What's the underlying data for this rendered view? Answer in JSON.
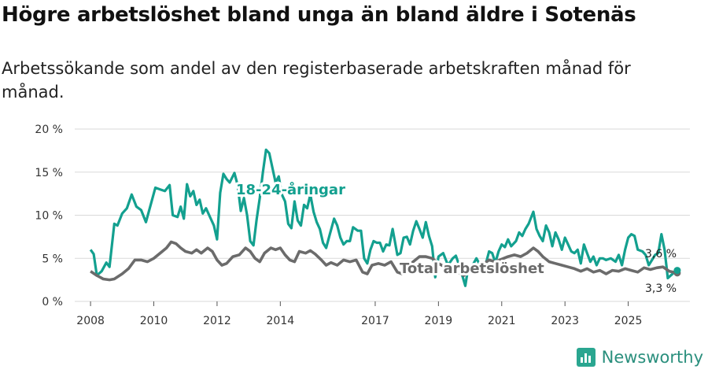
{
  "title": "Högre arbetslöshet bland unga än bland äldre i Sotenäs",
  "subtitle": "Arbetssökande som andel av den registerbaserade arbetskraften månad för månad.",
  "brand": {
    "name": "Newsworthy",
    "icon": "bar-chart-icon"
  },
  "colors": {
    "youth": "#13a08f",
    "total": "#6b6b6b",
    "grid": "#d9d9d9"
  },
  "chart_data": {
    "type": "line",
    "title": "Högre arbetslöshet bland unga än bland äldre i Sotenäs",
    "ylim": [
      0,
      20
    ],
    "xlim": [
      2007.5,
      2026.3
    ],
    "y_ticks": [
      0,
      5,
      10,
      15,
      20
    ],
    "y_tick_labels": [
      "0 %",
      "5 %",
      "10 %",
      "15 %",
      "20 %"
    ],
    "x_ticks": [
      2008,
      2010,
      2012,
      2014,
      2017,
      2019,
      2021,
      2023,
      2025
    ],
    "x_tick_labels": [
      "2008",
      "2010",
      "2012",
      "2014",
      "2017",
      "2019",
      "2021",
      "2023",
      "2025"
    ],
    "grid": true,
    "series": [
      {
        "name": "18-24-åringar",
        "label": "18-24-åringar",
        "color": "#13a08f",
        "end_label": "3,6 %",
        "end_value": 3.6,
        "points": [
          [
            2008.0,
            6.0
          ],
          [
            2008.1,
            5.5
          ],
          [
            2008.2,
            3.0
          ],
          [
            2008.35,
            3.5
          ],
          [
            2008.5,
            4.5
          ],
          [
            2008.6,
            4.0
          ],
          [
            2008.75,
            9.0
          ],
          [
            2008.85,
            8.8
          ],
          [
            2009.0,
            10.2
          ],
          [
            2009.15,
            10.8
          ],
          [
            2009.3,
            12.4
          ],
          [
            2009.45,
            11.0
          ],
          [
            2009.6,
            10.6
          ],
          [
            2009.75,
            9.2
          ],
          [
            2009.9,
            11.2
          ],
          [
            2010.05,
            13.2
          ],
          [
            2010.2,
            13.0
          ],
          [
            2010.35,
            12.8
          ],
          [
            2010.5,
            13.5
          ],
          [
            2010.6,
            10.0
          ],
          [
            2010.75,
            9.8
          ],
          [
            2010.85,
            11.0
          ],
          [
            2010.95,
            9.6
          ],
          [
            2011.05,
            13.6
          ],
          [
            2011.15,
            12.2
          ],
          [
            2011.25,
            12.8
          ],
          [
            2011.35,
            11.2
          ],
          [
            2011.45,
            11.8
          ],
          [
            2011.55,
            10.2
          ],
          [
            2011.65,
            10.8
          ],
          [
            2011.8,
            9.6
          ],
          [
            2011.9,
            8.8
          ],
          [
            2012.0,
            7.2
          ],
          [
            2012.1,
            12.6
          ],
          [
            2012.2,
            14.8
          ],
          [
            2012.3,
            14.2
          ],
          [
            2012.4,
            13.8
          ],
          [
            2012.55,
            14.9
          ],
          [
            2012.65,
            13.5
          ],
          [
            2012.75,
            10.5
          ],
          [
            2012.85,
            12.0
          ],
          [
            2012.95,
            10.0
          ],
          [
            2013.05,
            7.0
          ],
          [
            2013.15,
            6.5
          ],
          [
            2013.25,
            9.5
          ],
          [
            2013.35,
            12.0
          ],
          [
            2013.45,
            15.0
          ],
          [
            2013.55,
            17.6
          ],
          [
            2013.65,
            17.2
          ],
          [
            2013.75,
            15.5
          ],
          [
            2013.85,
            13.8
          ],
          [
            2013.95,
            14.5
          ],
          [
            2014.05,
            12.4
          ],
          [
            2014.15,
            11.6
          ],
          [
            2014.25,
            9.0
          ],
          [
            2014.35,
            8.5
          ],
          [
            2014.45,
            11.6
          ],
          [
            2014.55,
            9.4
          ],
          [
            2014.65,
            8.8
          ],
          [
            2014.75,
            11.2
          ],
          [
            2014.85,
            10.8
          ],
          [
            2014.95,
            12.4
          ],
          [
            2015.05,
            10.4
          ],
          [
            2015.15,
            9.2
          ],
          [
            2015.25,
            8.4
          ],
          [
            2015.35,
            6.8
          ],
          [
            2015.45,
            6.2
          ],
          [
            2015.55,
            7.6
          ],
          [
            2015.7,
            9.6
          ],
          [
            2015.8,
            8.8
          ],
          [
            2015.9,
            7.4
          ],
          [
            2016.0,
            6.6
          ],
          [
            2016.1,
            7.0
          ],
          [
            2016.2,
            7.0
          ],
          [
            2016.3,
            8.6
          ],
          [
            2016.45,
            8.2
          ],
          [
            2016.55,
            8.2
          ],
          [
            2016.65,
            5.0
          ],
          [
            2016.75,
            4.4
          ],
          [
            2016.85,
            6.0
          ],
          [
            2016.95,
            7.0
          ],
          [
            2017.05,
            6.8
          ],
          [
            2017.15,
            6.8
          ],
          [
            2017.25,
            5.8
          ],
          [
            2017.35,
            6.6
          ],
          [
            2017.45,
            6.5
          ],
          [
            2017.55,
            8.4
          ],
          [
            2017.7,
            5.4
          ],
          [
            2017.8,
            5.6
          ],
          [
            2017.9,
            7.4
          ],
          [
            2018.0,
            7.5
          ],
          [
            2018.1,
            6.6
          ],
          [
            2018.2,
            8.2
          ],
          [
            2018.3,
            9.3
          ],
          [
            2018.4,
            8.4
          ],
          [
            2018.5,
            7.4
          ],
          [
            2018.6,
            9.2
          ],
          [
            2018.7,
            7.6
          ],
          [
            2018.8,
            6.4
          ],
          [
            2018.9,
            2.8
          ],
          [
            2019.0,
            5.2
          ],
          [
            2019.15,
            5.6
          ],
          [
            2019.3,
            4.2
          ],
          [
            2019.45,
            5.0
          ],
          [
            2019.55,
            5.3
          ],
          [
            2019.7,
            3.7
          ],
          [
            2019.85,
            1.8
          ],
          [
            2019.95,
            4.2
          ],
          [
            2020.05,
            4.0
          ],
          [
            2020.2,
            5.0
          ],
          [
            2020.35,
            4.0
          ],
          [
            2020.5,
            4.4
          ],
          [
            2020.6,
            5.8
          ],
          [
            2020.7,
            5.6
          ],
          [
            2020.8,
            4.5
          ],
          [
            2020.9,
            5.8
          ],
          [
            2021.0,
            6.6
          ],
          [
            2021.1,
            6.3
          ],
          [
            2021.2,
            7.2
          ],
          [
            2021.3,
            6.4
          ],
          [
            2021.45,
            7.0
          ],
          [
            2021.55,
            8.0
          ],
          [
            2021.65,
            7.6
          ],
          [
            2021.75,
            8.4
          ],
          [
            2021.85,
            9.0
          ],
          [
            2022.0,
            10.4
          ],
          [
            2022.1,
            8.4
          ],
          [
            2022.2,
            7.6
          ],
          [
            2022.3,
            7.0
          ],
          [
            2022.4,
            8.8
          ],
          [
            2022.5,
            8.0
          ],
          [
            2022.6,
            6.4
          ],
          [
            2022.7,
            8.0
          ],
          [
            2022.8,
            7.2
          ],
          [
            2022.9,
            6.0
          ],
          [
            2023.0,
            7.4
          ],
          [
            2023.1,
            6.6
          ],
          [
            2023.2,
            5.8
          ],
          [
            2023.3,
            5.6
          ],
          [
            2023.4,
            6.0
          ],
          [
            2023.5,
            4.4
          ],
          [
            2023.6,
            6.6
          ],
          [
            2023.7,
            5.6
          ],
          [
            2023.8,
            4.6
          ],
          [
            2023.9,
            5.2
          ],
          [
            2024.0,
            4.2
          ],
          [
            2024.1,
            5.0
          ],
          [
            2024.2,
            5.0
          ],
          [
            2024.3,
            4.8
          ],
          [
            2024.45,
            5.0
          ],
          [
            2024.6,
            4.6
          ],
          [
            2024.7,
            5.4
          ],
          [
            2024.8,
            4.2
          ],
          [
            2024.9,
            6.0
          ],
          [
            2025.0,
            7.4
          ],
          [
            2025.1,
            7.8
          ],
          [
            2025.2,
            7.6
          ],
          [
            2025.3,
            6.0
          ],
          [
            2025.45,
            5.8
          ],
          [
            2025.55,
            5.4
          ],
          [
            2025.65,
            4.2
          ],
          [
            2025.75,
            4.8
          ],
          [
            2025.85,
            5.4
          ],
          [
            2025.95,
            5.6
          ],
          [
            2026.05,
            7.8
          ],
          [
            2026.15,
            6.0
          ],
          [
            2026.25,
            2.7
          ],
          [
            2026.4,
            3.2
          ],
          [
            2026.55,
            3.6
          ]
        ]
      },
      {
        "name": "Total arbetslöshet",
        "label": "Total arbetslöshet",
        "color": "#6b6b6b",
        "end_label": "3,3 %",
        "end_value": 3.3,
        "points": [
          [
            2008.0,
            3.5
          ],
          [
            2008.2,
            3.0
          ],
          [
            2008.4,
            2.6
          ],
          [
            2008.6,
            2.5
          ],
          [
            2008.75,
            2.6
          ],
          [
            2009.0,
            3.2
          ],
          [
            2009.2,
            3.8
          ],
          [
            2009.4,
            4.8
          ],
          [
            2009.6,
            4.8
          ],
          [
            2009.8,
            4.6
          ],
          [
            2010.0,
            5.0
          ],
          [
            2010.2,
            5.6
          ],
          [
            2010.4,
            6.2
          ],
          [
            2010.55,
            6.9
          ],
          [
            2010.7,
            6.7
          ],
          [
            2010.85,
            6.2
          ],
          [
            2011.0,
            5.8
          ],
          [
            2011.2,
            5.6
          ],
          [
            2011.35,
            6.0
          ],
          [
            2011.5,
            5.6
          ],
          [
            2011.7,
            6.2
          ],
          [
            2011.85,
            5.8
          ],
          [
            2012.0,
            4.8
          ],
          [
            2012.15,
            4.2
          ],
          [
            2012.3,
            4.4
          ],
          [
            2012.5,
            5.2
          ],
          [
            2012.7,
            5.4
          ],
          [
            2012.9,
            6.2
          ],
          [
            2013.05,
            5.8
          ],
          [
            2013.2,
            5.0
          ],
          [
            2013.35,
            4.6
          ],
          [
            2013.5,
            5.6
          ],
          [
            2013.7,
            6.2
          ],
          [
            2013.85,
            6.0
          ],
          [
            2014.0,
            6.2
          ],
          [
            2014.15,
            5.4
          ],
          [
            2014.3,
            4.8
          ],
          [
            2014.45,
            4.6
          ],
          [
            2014.6,
            5.8
          ],
          [
            2014.8,
            5.6
          ],
          [
            2014.95,
            5.9
          ],
          [
            2015.1,
            5.5
          ],
          [
            2015.3,
            4.8
          ],
          [
            2015.45,
            4.2
          ],
          [
            2015.6,
            4.5
          ],
          [
            2015.8,
            4.2
          ],
          [
            2016.0,
            4.8
          ],
          [
            2016.2,
            4.6
          ],
          [
            2016.4,
            4.8
          ],
          [
            2016.6,
            3.4
          ],
          [
            2016.75,
            3.2
          ],
          [
            2016.9,
            4.2
          ],
          [
            2017.1,
            4.4
          ],
          [
            2017.3,
            4.2
          ],
          [
            2017.5,
            4.6
          ],
          [
            2017.7,
            3.4
          ],
          [
            2017.85,
            3.2
          ],
          [
            2018.0,
            4.0
          ],
          [
            2018.2,
            4.6
          ],
          [
            2018.4,
            5.2
          ],
          [
            2018.6,
            5.2
          ],
          [
            2018.8,
            5.0
          ],
          [
            2019.0,
            4.4
          ],
          [
            2019.2,
            4.0
          ],
          [
            2019.4,
            3.6
          ],
          [
            2019.6,
            3.4
          ],
          [
            2019.8,
            3.0
          ],
          [
            2020.0,
            3.5
          ],
          [
            2020.2,
            4.0
          ],
          [
            2020.4,
            4.3
          ],
          [
            2020.6,
            4.8
          ],
          [
            2020.8,
            4.6
          ],
          [
            2021.0,
            4.9
          ],
          [
            2021.2,
            5.2
          ],
          [
            2021.4,
            5.4
          ],
          [
            2021.6,
            5.2
          ],
          [
            2021.8,
            5.6
          ],
          [
            2022.0,
            6.2
          ],
          [
            2022.15,
            5.8
          ],
          [
            2022.3,
            5.2
          ],
          [
            2022.5,
            4.6
          ],
          [
            2022.7,
            4.4
          ],
          [
            2022.9,
            4.2
          ],
          [
            2023.1,
            4.0
          ],
          [
            2023.3,
            3.8
          ],
          [
            2023.5,
            3.5
          ],
          [
            2023.7,
            3.8
          ],
          [
            2023.9,
            3.4
          ],
          [
            2024.1,
            3.6
          ],
          [
            2024.3,
            3.2
          ],
          [
            2024.5,
            3.6
          ],
          [
            2024.7,
            3.5
          ],
          [
            2024.9,
            3.8
          ],
          [
            2025.1,
            3.6
          ],
          [
            2025.3,
            3.4
          ],
          [
            2025.5,
            3.9
          ],
          [
            2025.7,
            3.7
          ],
          [
            2025.9,
            3.9
          ],
          [
            2026.1,
            4.0
          ],
          [
            2026.3,
            3.5
          ],
          [
            2026.55,
            3.3
          ]
        ]
      }
    ]
  }
}
